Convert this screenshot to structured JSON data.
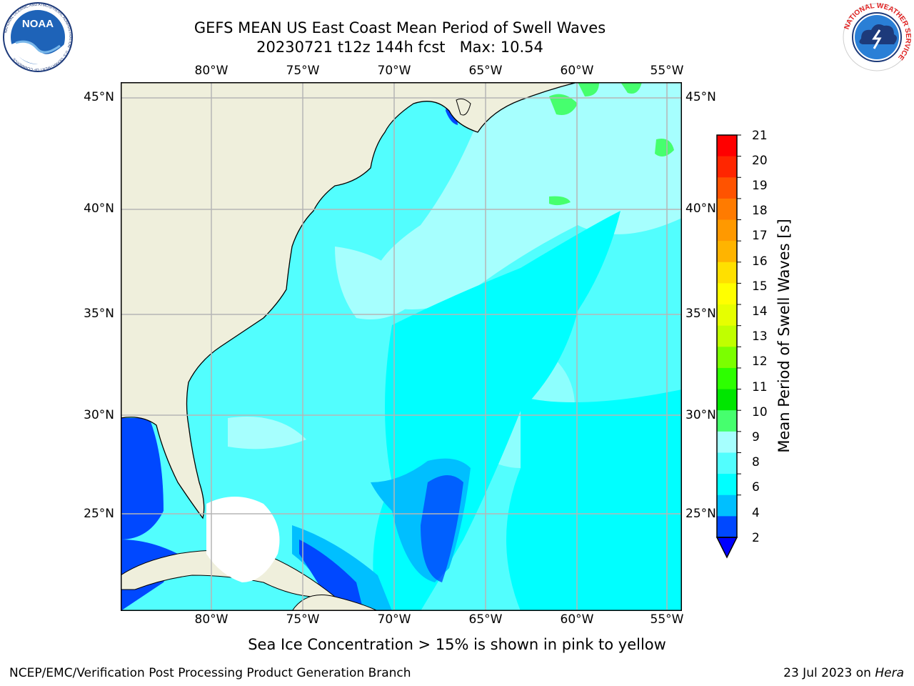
{
  "title": {
    "line1": "GEFS MEAN US East Coast Mean Period of Swell Waves",
    "line2": "20230721 t12z 144h fcst   Max: 10.54"
  },
  "logos": {
    "noaa": {
      "text": "NOAA",
      "ring_text": "NATIONAL OCEANIC AND ATMOSPHERIC ADMINISTRATION · U.S. DEPARTMENT OF COMMERCE"
    },
    "nws": {
      "ring_text": "NATIONAL WEATHER SERVICE"
    }
  },
  "map": {
    "lon_ticks_top": [
      "80°W",
      "75°W",
      "70°W",
      "65°W",
      "60°W",
      "55°W"
    ],
    "lon_ticks_bottom": [
      "80°W",
      "75°W",
      "70°W",
      "65°W",
      "60°W",
      "55°W"
    ],
    "lat_ticks_left": [
      "45°N",
      "40°N",
      "35°N",
      "30°N",
      "25°N"
    ],
    "lat_ticks_right": [
      "45°N",
      "40°N",
      "35°N",
      "30°N",
      "25°N"
    ],
    "land_color": "#efefdc",
    "grid": true
  },
  "colorbar": {
    "label": "Mean Period of Swell Waves [s]",
    "ticks": [
      "21",
      "20",
      "19",
      "18",
      "17",
      "16",
      "15",
      "14",
      "13",
      "12",
      "11",
      "10",
      "9",
      "8",
      "6",
      "4",
      "2"
    ],
    "colors_top_to_bottom": [
      "#ff0000",
      "#ff2600",
      "#ff5300",
      "#ff7b00",
      "#ff9900",
      "#ffb400",
      "#ffe000",
      "#ffff00",
      "#e6ff00",
      "#c0ff00",
      "#7bff00",
      "#2dff00",
      "#00e600",
      "#46ff6e",
      "#a6fffe",
      "#52fefe",
      "#00ffff",
      "#00bfff",
      "#0048ff"
    ],
    "extend_color": "#0000ff"
  },
  "notes": {
    "sea_ice": "Sea Ice Concentration > 15% is shown in pink to yellow",
    "credit": "NCEP/EMC/Verification Post Processing Product Generation Branch",
    "date": "23 Jul 2023 on ",
    "machine": "Hera"
  }
}
